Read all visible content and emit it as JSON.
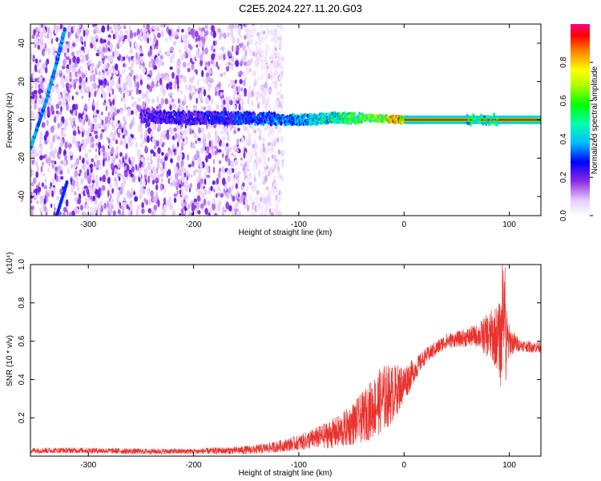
{
  "figure": {
    "title": "C2E5.2024.227.11.20.G03"
  },
  "colorbar": {
    "label": "Normalized spectral amplitude",
    "ticks": [
      "0.0",
      "0.2",
      "0.4",
      "0.6",
      "0.8"
    ]
  },
  "chart_data": [
    {
      "type": "heatmap",
      "title": "C2E5.2024.227.11.20.G03",
      "xlabel": "Height of straight line (km)",
      "ylabel": "Frequency (Hz)",
      "xlim": [
        -355,
        130
      ],
      "ylim": [
        -50,
        50
      ],
      "xticks": [
        -300,
        -200,
        -100,
        0,
        100
      ],
      "yticks": [
        -40,
        -20,
        0,
        20,
        40
      ],
      "colorbar": {
        "label": "Normalized spectral amplitude",
        "range": [
          0,
          1
        ],
        "ticks": [
          0.0,
          0.2,
          0.4,
          0.6,
          0.8
        ]
      },
      "features": {
        "noise_region_x": [
          -355,
          -130
        ],
        "carrier_line": [
          {
            "x": -250,
            "freq": 2,
            "amp": 0.25
          },
          {
            "x": -200,
            "freq": 1,
            "amp": 0.3
          },
          {
            "x": -150,
            "freq": 1,
            "amp": 0.35
          },
          {
            "x": -100,
            "freq": 0,
            "amp": 0.45
          },
          {
            "x": -60,
            "freq": 1,
            "amp": 0.6
          },
          {
            "x": -30,
            "freq": 1,
            "amp": 0.75
          },
          {
            "x": 0,
            "freq": 0,
            "amp": 0.95
          },
          {
            "x": 60,
            "freq": 0,
            "amp": 0.95
          },
          {
            "x": 90,
            "freq": 0,
            "amp": 0.95
          },
          {
            "x": 130,
            "freq": 0,
            "amp": 0.95
          }
        ],
        "diagonal_track": [
          {
            "x": -355,
            "freq": -15
          },
          {
            "x": -340,
            "freq": 10
          },
          {
            "x": -330,
            "freq": 30
          },
          {
            "x": -322,
            "freq": 48
          }
        ]
      }
    },
    {
      "type": "line",
      "xlabel": "Height of straight line (km)",
      "ylabel": "SNR (10 * v/v)",
      "yscale_label": "(x10⁴)",
      "xlim": [
        -355,
        130
      ],
      "ylim": [
        0,
        1.0
      ],
      "xticks": [
        -300,
        -200,
        -100,
        0,
        100
      ],
      "yticks": [
        0.2,
        0.4,
        0.6,
        0.8,
        1.0
      ],
      "series": [
        {
          "color": "#e8332e",
          "x": [
            -355,
            -300,
            -250,
            -200,
            -160,
            -140,
            -120,
            -100,
            -80,
            -60,
            -40,
            -30,
            -20,
            -10,
            0,
            10,
            20,
            30,
            40,
            50,
            60,
            70,
            80,
            90,
            95,
            100,
            110,
            120,
            130
          ],
          "y": [
            0.03,
            0.03,
            0.025,
            0.025,
            0.03,
            0.035,
            0.05,
            0.07,
            0.1,
            0.13,
            0.2,
            0.25,
            0.3,
            0.33,
            0.38,
            0.45,
            0.52,
            0.56,
            0.6,
            0.61,
            0.62,
            0.63,
            0.63,
            0.62,
            0.55,
            0.6,
            0.58,
            0.57,
            0.57
          ],
          "spread": [
            0.015,
            0.015,
            0.015,
            0.015,
            0.02,
            0.025,
            0.03,
            0.04,
            0.06,
            0.09,
            0.13,
            0.16,
            0.18,
            0.15,
            0.1,
            0.06,
            0.04,
            0.04,
            0.04,
            0.04,
            0.05,
            0.06,
            0.12,
            0.18,
            0.35,
            0.08,
            0.03,
            0.03,
            0.03
          ]
        }
      ]
    }
  ]
}
